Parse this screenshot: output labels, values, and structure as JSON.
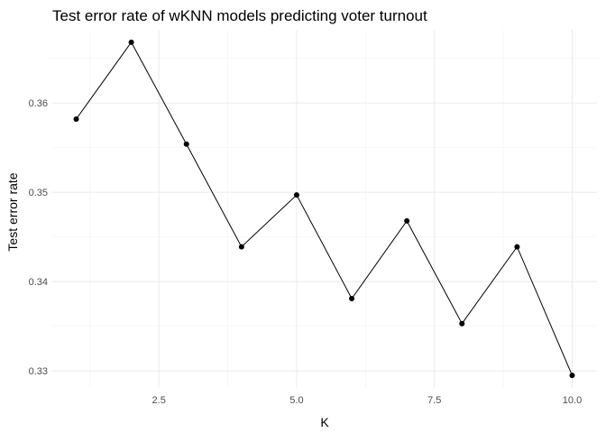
{
  "chart_data": {
    "type": "line",
    "title": "Test error rate of wKNN models predicting voter turnout",
    "xlabel": "K",
    "ylabel": "Test error rate",
    "x": [
      1,
      2,
      3,
      4,
      5,
      6,
      7,
      8,
      9,
      10
    ],
    "series": [
      {
        "values": [
          0.3582,
          0.3668,
          0.3554,
          0.3439,
          0.3497,
          0.3381,
          0.3468,
          0.3353,
          0.3439,
          0.3295
        ]
      }
    ],
    "xlim": [
      0.55,
      10.45
    ],
    "ylim": [
      0.3281,
      0.3682
    ],
    "xticks": [
      2.5,
      5.0,
      7.5,
      10.0
    ],
    "xtick_labels": [
      "2.5",
      "5.0",
      "7.5",
      "10.0"
    ],
    "yticks": [
      0.33,
      0.34,
      0.35,
      0.36
    ],
    "ytick_labels": [
      "0.33",
      "0.34",
      "0.35",
      "0.36"
    ],
    "grid": true,
    "line_color": "#000000",
    "point_color": "#000000",
    "grid_color": "#ebebeb"
  }
}
